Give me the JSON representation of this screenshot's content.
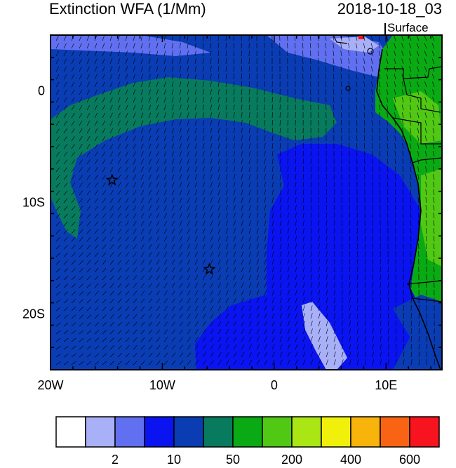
{
  "title": "Extinction WFA (1/Mm)",
  "datetime": "2018-10-18_03",
  "level": "Surface",
  "map": {
    "lon_range": [
      -20,
      15
    ],
    "lat_range": [
      -25,
      5
    ],
    "x_ticks": [
      {
        "lon": -20,
        "label": "20W"
      },
      {
        "lon": -10,
        "label": "10W"
      },
      {
        "lon": 0,
        "label": "0"
      },
      {
        "lon": 10,
        "label": "10E"
      }
    ],
    "y_ticks": [
      {
        "lat": 0,
        "label": "0"
      },
      {
        "lat": -10,
        "label": "10S"
      },
      {
        "lat": -20,
        "label": "20S"
      }
    ],
    "stars": [
      {
        "lon": -14.5,
        "lat": -8
      },
      {
        "lon": -5.8,
        "lat": -16
      }
    ]
  },
  "colorbar": {
    "colors": [
      "#ffffff",
      "#a8b0f8",
      "#6070f0",
      "#0a14f0",
      "#0a3cb4",
      "#087a5e",
      "#0aaa14",
      "#50c814",
      "#aae614",
      "#f0f00a",
      "#f8b40a",
      "#f86414",
      "#f8141e"
    ],
    "labels": [
      {
        "after_box": 1,
        "text": "2"
      },
      {
        "after_box": 3,
        "text": "10"
      },
      {
        "after_box": 5,
        "text": "50"
      },
      {
        "after_box": 7,
        "text": "200"
      },
      {
        "after_box": 9,
        "text": "400"
      },
      {
        "after_box": 11,
        "text": "600"
      }
    ]
  },
  "colors": {
    "background_field": "#0a3cb4",
    "plume_green": "#087a5e",
    "blue_region": "#0a14f0",
    "light_region": "#6070f0",
    "lightest_region": "#a8b0f8",
    "land_green": "#0aaa14"
  }
}
